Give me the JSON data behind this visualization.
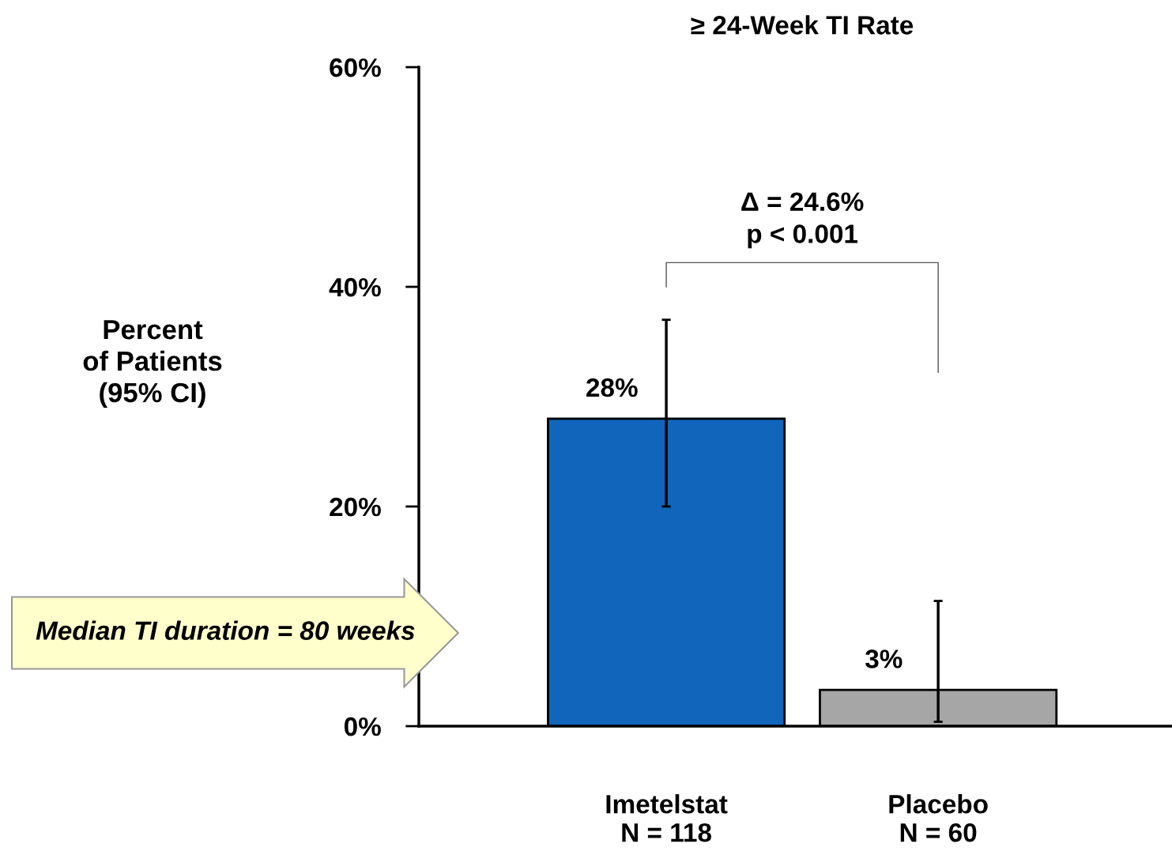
{
  "chart_data": {
    "type": "bar",
    "title": "≥ 24-Week TI Rate",
    "ylabel": "Percent\nof Patients\n(95% CI)",
    "categories": [
      "Imetelstat\nN = 118",
      "Placebo\nN = 60"
    ],
    "values": [
      28,
      3.3
    ],
    "colors": [
      "#1166bb",
      "#a6a6a6"
    ],
    "errors": [
      [
        20,
        37
      ],
      [
        0.4,
        11.4
      ]
    ],
    "value_labels": [
      "28%",
      "3%"
    ],
    "ylim": [
      0,
      60
    ],
    "yticks": [
      {
        "value": 0,
        "label": "0%"
      },
      {
        "value": 20,
        "label": "20%"
      },
      {
        "value": 40,
        "label": "40%"
      },
      {
        "value": 60,
        "label": "60%"
      }
    ],
    "grid": false,
    "legend": false,
    "annotations": [
      "Δ = 24.6%\np < 0.001",
      "Median TI duration = 80 weeks"
    ]
  }
}
